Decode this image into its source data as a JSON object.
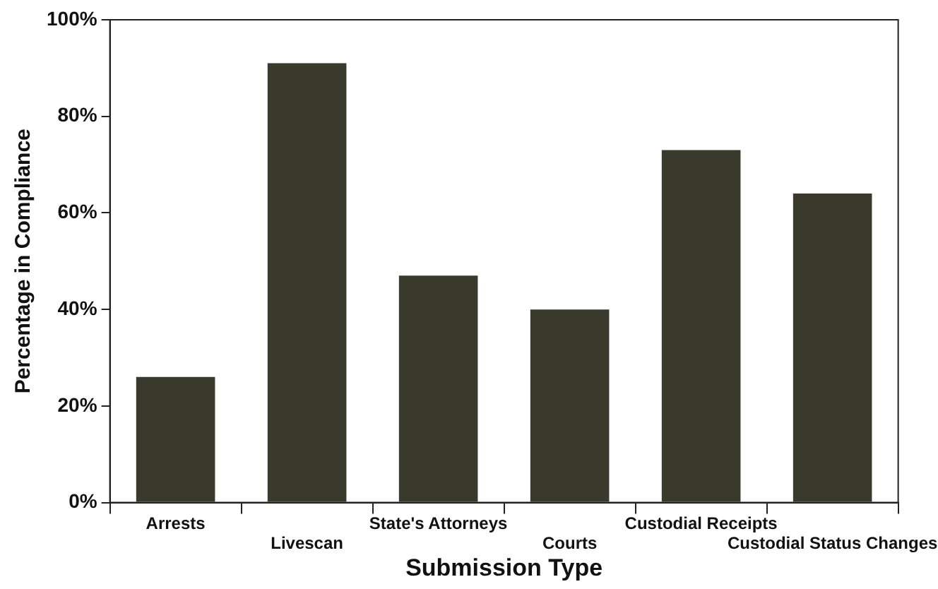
{
  "chart_data": {
    "type": "bar",
    "xlabel": "Submission Type",
    "ylabel": "Percentage in Compliance",
    "categories": [
      "Arrests",
      "Livescan",
      "State's Attorneys",
      "Courts",
      "Custodial Receipts",
      "Custodial Status Changes"
    ],
    "values": [
      26,
      91,
      47,
      40,
      73,
      64
    ],
    "color": "#3a3a2c",
    "ylim": [
      0,
      100
    ],
    "yticks": [
      {
        "value": 0,
        "label": "0%"
      },
      {
        "value": 20,
        "label": "20%"
      },
      {
        "value": 40,
        "label": "40%"
      },
      {
        "value": 60,
        "label": "60%"
      },
      {
        "value": 80,
        "label": "80%"
      },
      {
        "value": 100,
        "label": "100%"
      }
    ],
    "grid": false,
    "legend": false
  }
}
